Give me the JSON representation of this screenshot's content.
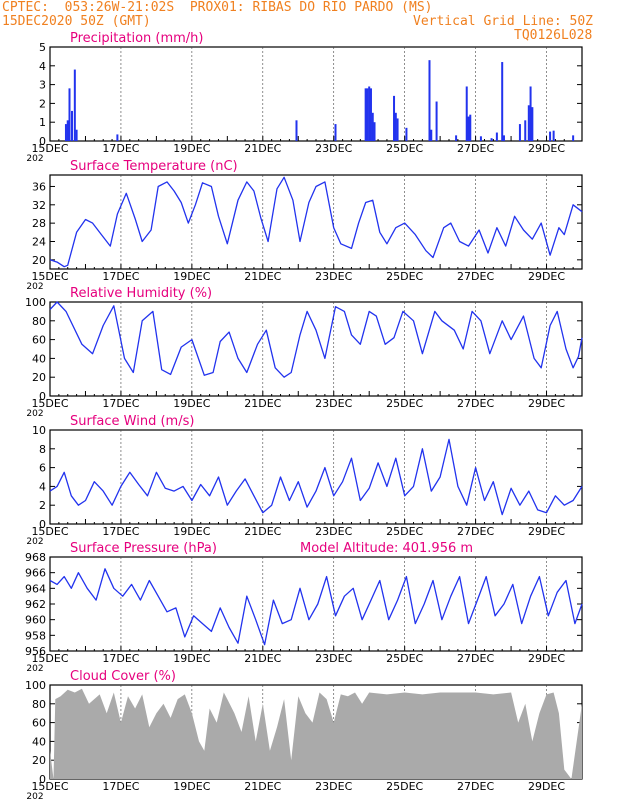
{
  "header": {
    "line1": "CPTEC:  053:26W-21:02S  PROX01: RIBAS DO RIO PARDO (MS)",
    "line2_left": "15DEC2020 50Z (GMT)",
    "line2_right": "Vertical Grid Line: 50Z",
    "line3_right": "TQ0126L028",
    "model_altitude": "Model Altitude: 401.956 m",
    "footer_year": "202"
  },
  "colors": {
    "header": "#f08020",
    "title": "#e6007e",
    "line": "#2233ee",
    "bar": "#2233ee",
    "cloud": "#aaaaaa"
  },
  "x_tick_labels": [
    "15DEC",
    "17DEC",
    "19DEC",
    "21DEC",
    "23DEC",
    "25DEC",
    "27DEC",
    "29DEC"
  ],
  "chart_data": [
    {
      "id": "precip",
      "type": "bar",
      "title": "Precipitation (mm/h)",
      "ylim": [
        0,
        5
      ],
      "yticks": [
        0,
        1,
        2,
        3,
        4,
        5
      ],
      "xlim": [
        0,
        15
      ],
      "x_unit": "days since 15DEC",
      "points": [
        [
          0.45,
          0.9
        ],
        [
          0.5,
          1.1
        ],
        [
          0.55,
          2.8
        ],
        [
          0.62,
          1.6
        ],
        [
          0.7,
          3.8
        ],
        [
          0.75,
          0.6
        ],
        [
          1.9,
          0.35
        ],
        [
          6.95,
          1.1
        ],
        [
          8.05,
          0.9
        ],
        [
          8.9,
          2.8
        ],
        [
          8.95,
          2.8
        ],
        [
          9.0,
          2.9
        ],
        [
          9.05,
          2.8
        ],
        [
          9.1,
          1.5
        ],
        [
          9.15,
          1.0
        ],
        [
          9.7,
          2.4
        ],
        [
          9.75,
          1.5
        ],
        [
          9.8,
          1.2
        ],
        [
          10.05,
          0.7
        ],
        [
          10.7,
          4.3
        ],
        [
          10.75,
          0.6
        ],
        [
          10.9,
          2.1
        ],
        [
          11.45,
          0.3
        ],
        [
          11.75,
          2.9
        ],
        [
          11.8,
          1.3
        ],
        [
          11.85,
          1.4
        ],
        [
          12.15,
          0.25
        ],
        [
          12.45,
          0.15
        ],
        [
          12.6,
          0.45
        ],
        [
          12.75,
          4.2
        ],
        [
          12.8,
          0.3
        ],
        [
          13.25,
          0.9
        ],
        [
          13.4,
          1.1
        ],
        [
          13.5,
          1.9
        ],
        [
          13.55,
          2.9
        ],
        [
          13.6,
          1.8
        ],
        [
          14.1,
          0.5
        ],
        [
          14.2,
          0.55
        ],
        [
          14.75,
          0.3
        ]
      ]
    },
    {
      "id": "temp",
      "type": "line",
      "title": "Surface Temperature (nC)",
      "ylim": [
        18,
        38.5
      ],
      "yticks": [
        20,
        24,
        28,
        32,
        36
      ],
      "x": [
        0,
        0.2,
        0.4,
        0.5,
        0.75,
        1.0,
        1.2,
        1.45,
        1.7,
        1.9,
        2.15,
        2.4,
        2.6,
        2.85,
        3.05,
        3.3,
        3.5,
        3.7,
        3.9,
        4.1,
        4.3,
        4.55,
        4.75,
        5.0,
        5.3,
        5.55,
        5.75,
        5.95,
        6.15,
        6.4,
        6.6,
        6.85,
        7.05,
        7.3,
        7.5,
        7.75,
        8.0,
        8.2,
        8.5,
        8.7,
        8.9,
        9.1,
        9.3,
        9.5,
        9.75,
        10.0,
        10.3,
        10.6,
        10.8,
        11.1,
        11.3,
        11.55,
        11.8,
        12.1,
        12.35,
        12.6,
        12.85,
        13.1,
        13.35,
        13.6,
        13.85,
        14.1,
        14.35,
        14.5,
        14.75,
        15.0
      ],
      "values": [
        20,
        19.5,
        18.5,
        18.8,
        26,
        28.8,
        28,
        25.5,
        23,
        30,
        34.5,
        29,
        24,
        26.5,
        36,
        37,
        35,
        32.5,
        28,
        32,
        36.8,
        36,
        29.5,
        23.5,
        33,
        37,
        35,
        29,
        24,
        35.5,
        38,
        33,
        24,
        32.5,
        36,
        37,
        27,
        23.5,
        22.5,
        28,
        32.5,
        33,
        26,
        23.5,
        27,
        28,
        25.5,
        22,
        20.5,
        27,
        28,
        24,
        23,
        26.5,
        21.5,
        27,
        23,
        29.5,
        26.5,
        24.5,
        28,
        21,
        27,
        25.5,
        32,
        30.5
      ]
    },
    {
      "id": "rh",
      "type": "line",
      "title": "Relative Humidity (%)",
      "ylim": [
        0,
        100
      ],
      "yticks": [
        0,
        20,
        40,
        60,
        80,
        100
      ],
      "x": [
        0,
        0.2,
        0.45,
        0.9,
        1.2,
        1.5,
        1.8,
        2.1,
        2.35,
        2.6,
        2.9,
        3.15,
        3.4,
        3.7,
        4.0,
        4.35,
        4.6,
        4.8,
        5.05,
        5.3,
        5.55,
        5.85,
        6.1,
        6.35,
        6.6,
        6.8,
        7.05,
        7.25,
        7.5,
        7.75,
        8.05,
        8.3,
        8.5,
        8.75,
        9.0,
        9.2,
        9.45,
        9.7,
        9.95,
        10.25,
        10.5,
        10.85,
        11.05,
        11.4,
        11.65,
        11.9,
        12.15,
        12.4,
        12.75,
        13.0,
        13.35,
        13.65,
        13.85,
        14.1,
        14.3,
        14.55,
        14.75,
        14.9,
        15.0
      ],
      "values": [
        92,
        100,
        90,
        55,
        45,
        75,
        96,
        40,
        25,
        80,
        90,
        28,
        23,
        52,
        60,
        22,
        25,
        58,
        68,
        40,
        25,
        55,
        70,
        30,
        20,
        25,
        65,
        90,
        70,
        40,
        95,
        90,
        65,
        55,
        90,
        85,
        55,
        62,
        90,
        80,
        45,
        90,
        80,
        70,
        50,
        90,
        80,
        45,
        80,
        60,
        85,
        40,
        30,
        75,
        90,
        50,
        30,
        42,
        62
      ]
    },
    {
      "id": "wind",
      "type": "line",
      "title": "Surface Wind (m/s)",
      "ylim": [
        0,
        10
      ],
      "yticks": [
        0,
        2,
        4,
        6,
        8,
        10
      ],
      "x": [
        0,
        0.2,
        0.4,
        0.6,
        0.8,
        1.0,
        1.25,
        1.5,
        1.75,
        2.0,
        2.25,
        2.5,
        2.75,
        3.0,
        3.25,
        3.5,
        3.75,
        4.0,
        4.25,
        4.5,
        4.75,
        5.0,
        5.25,
        5.5,
        5.75,
        6.0,
        6.25,
        6.5,
        6.75,
        7.0,
        7.25,
        7.5,
        7.75,
        8.0,
        8.25,
        8.5,
        8.75,
        9.0,
        9.25,
        9.5,
        9.75,
        10.0,
        10.25,
        10.5,
        10.75,
        11.0,
        11.25,
        11.5,
        11.75,
        12.0,
        12.25,
        12.5,
        12.75,
        13.0,
        13.25,
        13.5,
        13.75,
        14.0,
        14.25,
        14.5,
        14.75,
        15.0
      ],
      "values": [
        3.5,
        4,
        5.5,
        3,
        2,
        2.5,
        4.5,
        3.5,
        2,
        4,
        5.5,
        4.2,
        3,
        5.5,
        3.8,
        3.5,
        4,
        2.5,
        4.2,
        3,
        5,
        2,
        3.5,
        4.8,
        3,
        1.2,
        2,
        5,
        2.5,
        4.5,
        1.8,
        3.5,
        6,
        3,
        4.5,
        7,
        2.5,
        3.8,
        6.5,
        4,
        7,
        3,
        4,
        8,
        3.5,
        5,
        9,
        4,
        2,
        6,
        2.5,
        4.5,
        1,
        3.8,
        2,
        3.5,
        1.5,
        1.2,
        3,
        2,
        2.5,
        4
      ]
    },
    {
      "id": "pressure",
      "type": "line",
      "title": "Surface Pressure (hPa)",
      "ylim": [
        956,
        968
      ],
      "yticks": [
        956,
        958,
        960,
        962,
        964,
        966,
        968
      ],
      "x": [
        0,
        0.2,
        0.4,
        0.6,
        0.8,
        1.05,
        1.3,
        1.55,
        1.8,
        2.05,
        2.3,
        2.55,
        2.8,
        3.05,
        3.3,
        3.55,
        3.8,
        4.05,
        4.3,
        4.55,
        4.8,
        5.05,
        5.3,
        5.55,
        5.8,
        6.05,
        6.3,
        6.55,
        6.8,
        7.05,
        7.3,
        7.55,
        7.8,
        8.05,
        8.3,
        8.55,
        8.8,
        9.05,
        9.3,
        9.55,
        9.8,
        10.05,
        10.3,
        10.55,
        10.8,
        11.05,
        11.3,
        11.55,
        11.8,
        12.05,
        12.3,
        12.55,
        12.8,
        13.05,
        13.3,
        13.55,
        13.8,
        14.05,
        14.3,
        14.55,
        14.8,
        15.0
      ],
      "values": [
        965,
        964.5,
        965.5,
        964,
        966,
        964,
        962.5,
        966.5,
        964,
        963,
        964.5,
        962.5,
        965,
        963,
        961,
        961.5,
        957.8,
        960.5,
        959.5,
        958.5,
        961.5,
        959,
        957,
        963,
        960,
        956.8,
        962.5,
        959.5,
        960,
        964,
        960,
        962,
        965.5,
        960.5,
        963,
        964,
        960,
        962.5,
        965,
        960,
        962.5,
        965.5,
        959.5,
        962,
        965,
        960,
        963,
        965.5,
        959.5,
        962.5,
        965.5,
        960.5,
        962,
        964.5,
        959.5,
        963,
        965.5,
        960.5,
        963.5,
        965,
        959.5,
        962
      ]
    },
    {
      "id": "cloud",
      "type": "area",
      "title": "Cloud Cover (%)",
      "ylim": [
        0,
        100
      ],
      "yticks": [
        0,
        20,
        40,
        60,
        80,
        100
      ],
      "x": [
        0,
        0.1,
        0.15,
        0.3,
        0.5,
        0.7,
        0.9,
        1.1,
        1.4,
        1.6,
        1.8,
        2.0,
        2.2,
        2.4,
        2.6,
        2.8,
        3.0,
        3.2,
        3.4,
        3.6,
        3.8,
        4.0,
        4.2,
        4.35,
        4.5,
        4.7,
        4.9,
        5.0,
        5.2,
        5.4,
        5.6,
        5.8,
        6.0,
        6.2,
        6.4,
        6.6,
        6.8,
        7.0,
        7.2,
        7.4,
        7.6,
        7.8,
        8.0,
        8.2,
        8.4,
        8.6,
        8.8,
        9.0,
        9.5,
        10.0,
        10.5,
        11.0,
        11.5,
        12.0,
        12.5,
        13.0,
        13.2,
        13.4,
        13.6,
        13.8,
        14.0,
        14.2,
        14.35,
        14.5,
        14.7,
        15.0
      ],
      "values": [
        30,
        0,
        85,
        88,
        95,
        92,
        96,
        80,
        90,
        70,
        92,
        60,
        88,
        75,
        90,
        55,
        70,
        80,
        65,
        85,
        90,
        70,
        40,
        30,
        75,
        60,
        92,
        85,
        70,
        50,
        88,
        40,
        80,
        30,
        55,
        85,
        20,
        88,
        70,
        60,
        92,
        85,
        60,
        90,
        88,
        92,
        80,
        92,
        90,
        92,
        90,
        92,
        92,
        92,
        90,
        92,
        60,
        80,
        40,
        70,
        90,
        92,
        70,
        10,
        0,
        80
      ]
    }
  ]
}
